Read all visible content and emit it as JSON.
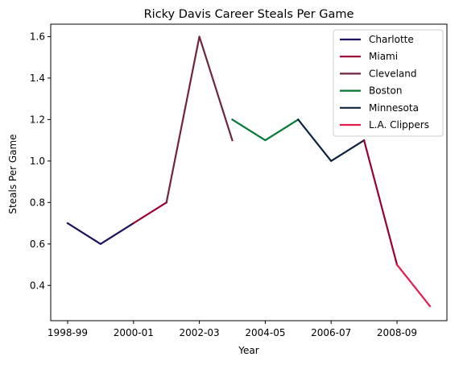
{
  "chart_data": {
    "type": "line",
    "title": "Ricky Davis Career Steals Per Game",
    "xlabel": "Year",
    "ylabel": "Steals Per Game",
    "x_categories": [
      "1998-99",
      "1999-00",
      "2000-01",
      "2001-02",
      "2002-03",
      "2003-04",
      "2003-04",
      "2004-05",
      "2005-06",
      "2006-07",
      "2007-08",
      "2008-09",
      "2009-10"
    ],
    "x_tick_labels": [
      "1998-99",
      "2000-01",
      "2002-03",
      "2004-05",
      "2006-07",
      "2008-09"
    ],
    "ylim": [
      0.23,
      1.66
    ],
    "y_ticks": [
      "0.4",
      "0.6",
      "0.8",
      "1.0",
      "1.2",
      "1.4",
      "1.6"
    ],
    "grid": false,
    "legend_position": "top-right",
    "series": [
      {
        "name": "Charlotte",
        "color": "#1d1160",
        "points": [
          [
            "1998-99",
            0.7
          ],
          [
            "1999-00",
            0.6
          ],
          [
            "2000-01",
            0.7
          ]
        ]
      },
      {
        "name": "Miami",
        "color": "#98002e",
        "points": [
          [
            "2000-01",
            0.7
          ],
          [
            "2001-02",
            0.8
          ]
        ]
      },
      {
        "name": "Cleveland",
        "color": "#6f263d",
        "points": [
          [
            "2001-02",
            0.8
          ],
          [
            "2002-03",
            1.6
          ],
          [
            "2003-04",
            1.1
          ]
        ]
      },
      {
        "name": "Boston",
        "color": "#007a33",
        "points": [
          [
            "2003-04",
            1.2
          ],
          [
            "2004-05",
            1.1
          ],
          [
            "2005-06",
            1.2
          ]
        ]
      },
      {
        "name": "Minnesota",
        "color": "#0c2340",
        "points": [
          [
            "2005-06",
            1.2
          ],
          [
            "2006-07",
            1.0
          ],
          [
            "2007-08",
            1.1
          ]
        ]
      },
      {
        "name": "Miami",
        "color": "#98002e",
        "points": [
          [
            "2007-08",
            1.1
          ],
          [
            "2008-09",
            0.5
          ]
        ]
      },
      {
        "name": "L.A. Clippers",
        "color": "#e31b4e",
        "points": [
          [
            "2008-09",
            0.5
          ],
          [
            "2009-10",
            0.3
          ]
        ]
      }
    ],
    "legend": [
      {
        "label": "Charlotte",
        "color": "#1d1160"
      },
      {
        "label": "Miami",
        "color": "#98002e"
      },
      {
        "label": "Cleveland",
        "color": "#6f263d"
      },
      {
        "label": "Boston",
        "color": "#007a33"
      },
      {
        "label": "Minnesota",
        "color": "#0c2340"
      },
      {
        "label": "L.A. Clippers",
        "color": "#e31b4e"
      }
    ]
  }
}
